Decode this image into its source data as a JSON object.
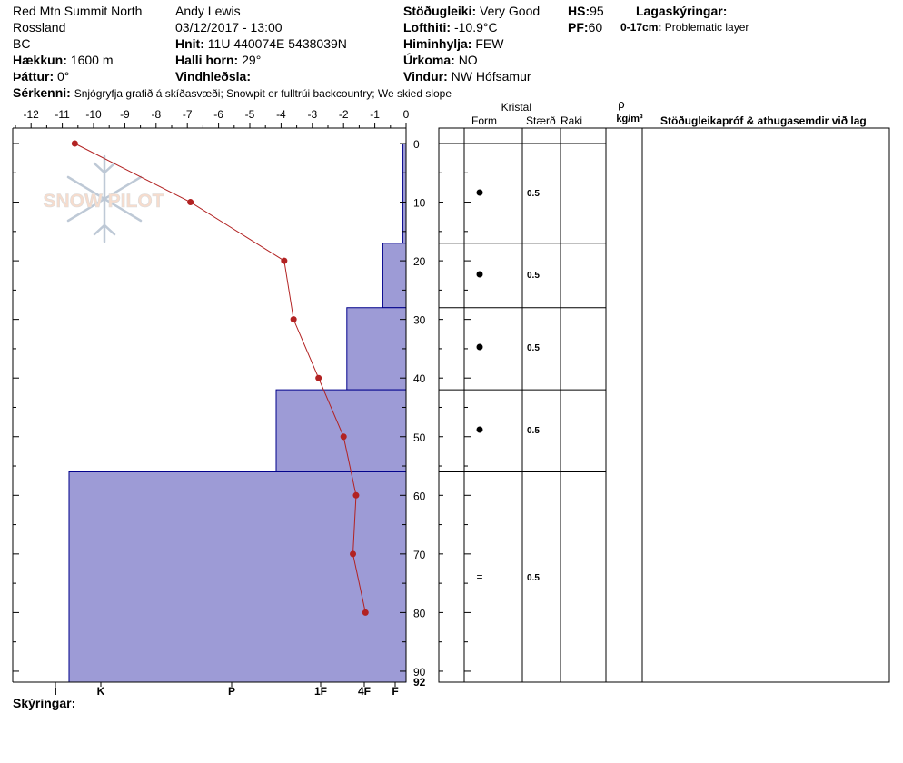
{
  "header": {
    "location": "Red Mtn Summit North",
    "region": "Rossland",
    "state": "BC",
    "elevation_label": "Hækkun:",
    "elevation": "1600 m",
    "aspect_label": "Þáttur:",
    "aspect": "0°",
    "observer": "Andy Lewis",
    "datetime": "03/12/2017 - 13:00",
    "coords_label": "Hnit:",
    "coords": "11U 440074E 5438039N",
    "slope_label": "Halli horn:",
    "slope": "29°",
    "wind_loading_label": "Vindhleðsla:",
    "wind_loading": "",
    "stability_label": "Stöðugleiki:",
    "stability": "Very Good",
    "air_temp_label": "Lofthiti:",
    "air_temp": "-10.9°C",
    "sky_label": "Himinhylja:",
    "sky": "FEW",
    "precip_label": "Úrkoma:",
    "precip": "NO",
    "wind_label": "Vindur:",
    "wind": "NW Hófsamur",
    "hs_label": "HS:",
    "hs": "95",
    "pf_label": "PF:",
    "pf": "60",
    "layer_notes_label": "Lagaskýringar:",
    "layer_note_depth": "0-17cm:",
    "layer_note_text": "Problematic layer",
    "specifics_label": "Sérkenni:",
    "specifics": "Snjógryfja grafið á skíðasvæði; Snowpit er fulltrúi backcountry; We skied slope",
    "notes_label": "Skýringar:"
  },
  "logo_text": "SNOW PILOT",
  "table_headers": {
    "crystal": "Kristal",
    "form": "Form",
    "size": "Stærð",
    "moisture": "Raki",
    "rho": "ρ",
    "density_unit": "kg/m³",
    "tests": "Stöðugleikapróf & athugasemdir við lag"
  },
  "chart_data": {
    "type": "line",
    "title": "",
    "temp_axis": {
      "ticks": [
        -12,
        -11,
        -10,
        -9,
        -8,
        -7,
        -6,
        -5,
        -4,
        -3,
        -2,
        -1,
        0
      ],
      "range": [
        -12.5,
        0
      ]
    },
    "depth_axis": {
      "ticks": [
        0,
        10,
        20,
        30,
        40,
        50,
        60,
        70,
        80,
        90
      ],
      "bottom_label": "92",
      "range": [
        0,
        92
      ]
    },
    "hardness_labels": [
      "I",
      "K",
      "P",
      "1F",
      "4F",
      "F"
    ],
    "temperature_profile": {
      "depth_cm": [
        0,
        10,
        20,
        30,
        40,
        50,
        60,
        70,
        80
      ],
      "temp_c": [
        -10.6,
        -6.9,
        -3.9,
        -3.6,
        -2.8,
        -2.0,
        -1.6,
        -1.7,
        -1.3
      ]
    },
    "layers": [
      {
        "top_cm": 0,
        "bottom_cm": 17,
        "hardness": "F",
        "hardness_pos": 0.3,
        "form": "●",
        "size": "0.5"
      },
      {
        "top_cm": 17,
        "bottom_cm": 28,
        "hardness": "4F-",
        "hardness_pos": 1.4,
        "form": "●",
        "size": "0.5"
      },
      {
        "top_cm": 28,
        "bottom_cm": 42,
        "hardness": "4F",
        "hardness_pos": 2.4,
        "form": "●",
        "size": "0.5"
      },
      {
        "top_cm": 42,
        "bottom_cm": 56,
        "hardness": "1F",
        "hardness_pos": 3.5,
        "form": "●",
        "size": "0.5"
      },
      {
        "top_cm": 56,
        "bottom_cm": 92,
        "hardness": "P",
        "hardness_pos": 5.7,
        "form": "=",
        "size": "0.5"
      }
    ]
  },
  "colors": {
    "layer_fill": "#9d9bd6",
    "layer_stroke": "#00008b",
    "temp_line": "#b22222"
  }
}
